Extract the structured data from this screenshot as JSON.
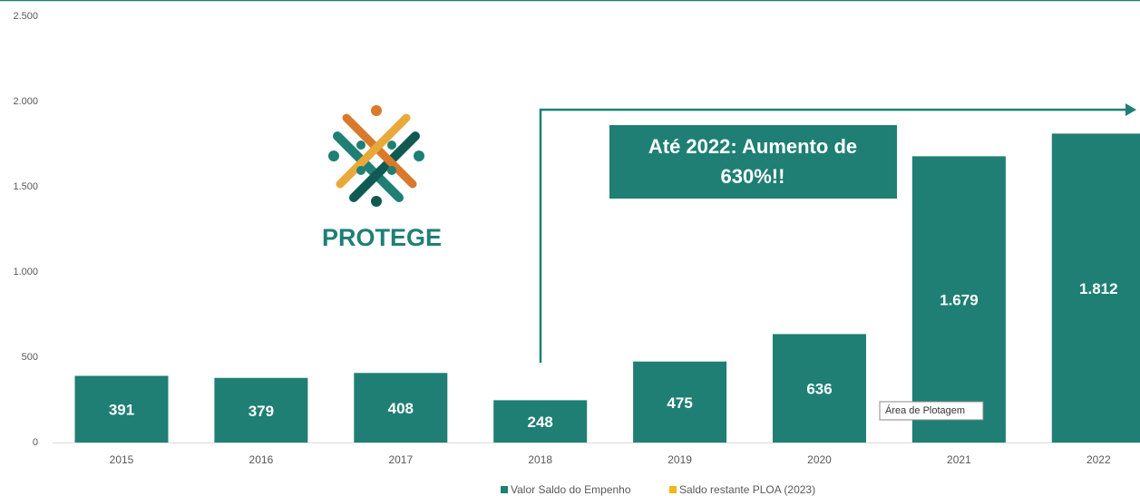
{
  "chart_data": {
    "type": "bar",
    "categories": [
      "2015",
      "2016",
      "2017",
      "2018",
      "2019",
      "2020",
      "2021",
      "2022"
    ],
    "series": [
      {
        "name": "Valor Saldo do Empenho",
        "color": "#1f7f74",
        "values": [
          391,
          379,
          408,
          248,
          475,
          636,
          1679,
          1812
        ],
        "value_labels": [
          "391",
          "379",
          "408",
          "248",
          "475",
          "636",
          "1.679",
          "1.812"
        ]
      },
      {
        "name": "Saldo restante PLOA (2023)",
        "color": "#f2b51c",
        "values": [
          null,
          null,
          null,
          null,
          null,
          null,
          null,
          null
        ]
      }
    ],
    "ylim": [
      0,
      2500
    ],
    "yticks": [
      0,
      500,
      {
        "value": 1000,
        "label": "1.000"
      },
      {
        "value": 1500,
        "label": "1.500"
      },
      {
        "value": 2000,
        "label": "2.000"
      },
      {
        "value": 2500,
        "label": "2.500"
      }
    ],
    "grid": false,
    "annotation": [
      "Até 2022: Aumento de",
      "630%!!"
    ],
    "logo_text": "PROTEGE",
    "tooltip": "Área de Plotagem"
  }
}
